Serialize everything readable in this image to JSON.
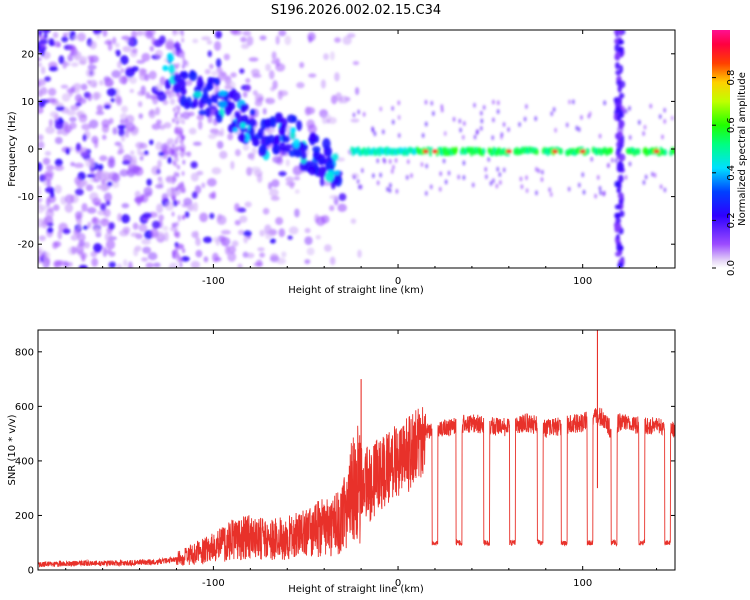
{
  "title": "S196.2026.002.02.15.C34",
  "chart_data": [
    {
      "type": "heatmap",
      "xlabel": "Height of straight line (km)",
      "ylabel": "Frequency (Hz)",
      "xlim": [
        -195,
        150
      ],
      "ylim": [
        -25,
        25
      ],
      "xticks": [
        -100,
        0,
        100
      ],
      "yticks": [
        -20,
        -10,
        0,
        10,
        20
      ],
      "colorbar": {
        "label": "Normalized spectral amplitude",
        "range": [
          0,
          1
        ],
        "ticks": [
          0.0,
          0.2,
          0.4,
          0.6,
          0.8
        ]
      },
      "features": [
        {
          "name": "diffuse broadband noise",
          "x_range": [
            -195,
            -20
          ],
          "freq_range": [
            -25,
            25
          ],
          "amplitude": 0.15
        },
        {
          "name": "descending trace",
          "x": [
            -125,
            -110,
            -100,
            -90,
            -80,
            -70,
            -60,
            -50,
            -40,
            -32
          ],
          "freq": [
            16,
            12,
            11,
            8,
            5,
            2,
            4,
            0,
            -2,
            -5
          ],
          "amplitude": 0.35
        },
        {
          "name": "narrowband line near 0 Hz",
          "x_range": [
            -25,
            150
          ],
          "freq": -0.5,
          "amplitude": 0.55
        },
        {
          "name": "vertical stripe",
          "x": 120,
          "freq_range": [
            -25,
            25
          ],
          "amplitude": 0.2
        }
      ]
    },
    {
      "type": "line",
      "xlabel": "Height of straight line (km)",
      "ylabel": "SNR (10 * v/v)",
      "xlim": [
        -195,
        150
      ],
      "ylim": [
        0,
        880
      ],
      "xticks": [
        -100,
        0,
        100
      ],
      "yticks": [
        0,
        200,
        400,
        600,
        800
      ],
      "series": [
        {
          "name": "SNR",
          "color": "#e8312a",
          "x": [
            -195,
            -170,
            -150,
            -130,
            -120,
            -110,
            -100,
            -90,
            -80,
            -70,
            -60,
            -50,
            -40,
            -30,
            -25,
            -20,
            -15,
            -10,
            -5,
            0,
            5,
            10,
            15,
            20,
            25,
            30,
            40,
            50,
            60,
            70,
            80,
            90,
            100,
            105,
            110,
            115,
            120,
            130,
            140,
            150
          ],
          "values": [
            20,
            25,
            25,
            30,
            40,
            60,
            80,
            110,
            120,
            110,
            120,
            130,
            160,
            180,
            300,
            320,
            310,
            350,
            380,
            400,
            420,
            450,
            500,
            510,
            520,
            530,
            540,
            530,
            520,
            540,
            520,
            530,
            540,
            560,
            560,
            520,
            540,
            530,
            530,
            520
          ]
        }
      ],
      "annotations": [
        {
          "text": "spike",
          "x": -20,
          "y": 700
        },
        {
          "text": "spike",
          "x": 108,
          "y": 880
        }
      ],
      "notch_centers": [
        20,
        33,
        48,
        62,
        77,
        90,
        104,
        117,
        132,
        146
      ],
      "notch_floor": 100
    }
  ],
  "colors": {
    "line": "#e8312a",
    "axis": "#000000",
    "background": "#ffffff"
  }
}
